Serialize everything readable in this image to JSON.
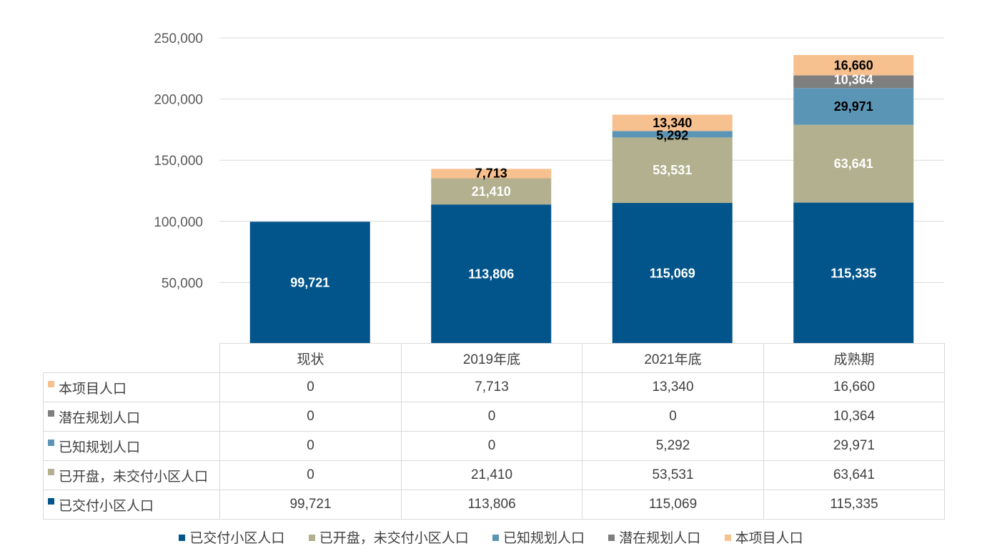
{
  "chart_data": {
    "type": "bar",
    "stacked": true,
    "categories": [
      "现状",
      "2019年底",
      "2021年底",
      "成熟期"
    ],
    "series": [
      {
        "name": "已交付小区人口",
        "color": "#02558b",
        "label_color": "#ffffff",
        "values": [
          99721,
          113806,
          115069,
          115335
        ]
      },
      {
        "name": "已开盘，未交付小区人口",
        "color": "#b2b08e",
        "label_color": "#ffffff",
        "values": [
          0,
          21410,
          53531,
          63641
        ]
      },
      {
        "name": "已知规划人口",
        "color": "#5b95b5",
        "label_color": "#000000",
        "values": [
          0,
          0,
          5292,
          29971
        ]
      },
      {
        "name": "潜在规划人口",
        "color": "#7f7f7f",
        "label_color": "#ffffff",
        "values": [
          0,
          0,
          0,
          10364
        ]
      },
      {
        "name": "本项目人口",
        "color": "#f7c08f",
        "label_color": "#000000",
        "values": [
          0,
          7713,
          13340,
          16660
        ]
      }
    ],
    "ylim": [
      0,
      250000
    ],
    "yticks": [
      0,
      50000,
      100000,
      150000,
      200000,
      250000
    ],
    "ytick_labels": [
      "-",
      "50,000",
      "100,000",
      "150,000",
      "200,000",
      "250,000"
    ],
    "title": "",
    "xlabel": "",
    "ylabel": "",
    "grid": true,
    "legend_position": "bottom"
  },
  "table": {
    "header": [
      "现状",
      "2019年底",
      "2021年底",
      "成熟期"
    ],
    "rows": [
      {
        "label": "本项目人口",
        "color": "#f7c08f",
        "cells": [
          "0",
          "7,713",
          "13,340",
          "16,660"
        ]
      },
      {
        "label": "潜在规划人口",
        "color": "#7f7f7f",
        "cells": [
          "0",
          "0",
          "0",
          "10,364"
        ]
      },
      {
        "label": "已知规划人口",
        "color": "#5b95b5",
        "cells": [
          "0",
          "0",
          "5,292",
          "29,971"
        ]
      },
      {
        "label": "已开盘，未交付小区人口",
        "color": "#b2b08e",
        "cells": [
          "0",
          "21,410",
          "53,531",
          "63,641"
        ]
      },
      {
        "label": "已交付小区人口",
        "color": "#02558b",
        "cells": [
          "99,721",
          "113,806",
          "115,069",
          "115,335"
        ]
      }
    ]
  },
  "legend": [
    {
      "label": "已交付小区人口",
      "color": "#02558b"
    },
    {
      "label": "已开盘，未交付小区人口",
      "color": "#b2b08e"
    },
    {
      "label": "已知规划人口",
      "color": "#5b95b5"
    },
    {
      "label": "潜在规划人口",
      "color": "#7f7f7f"
    },
    {
      "label": "本项目人口",
      "color": "#f7c08f"
    }
  ]
}
